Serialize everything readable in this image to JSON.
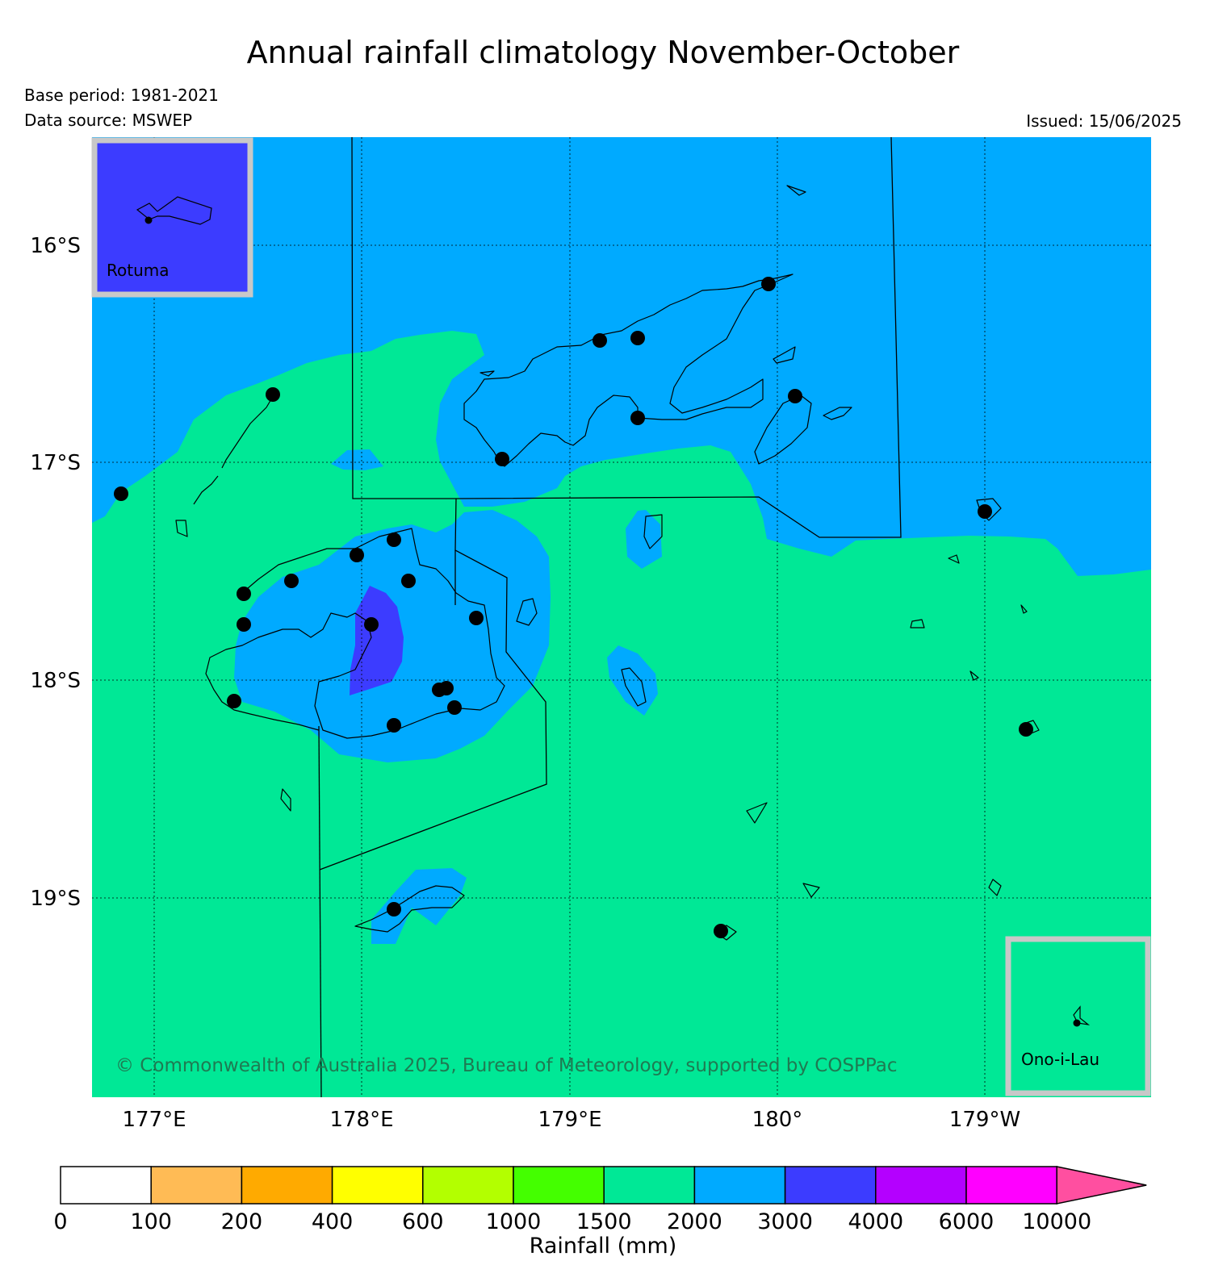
{
  "title": "Annual rainfall climatology November-October",
  "base_period": "Base period: 1981-2021",
  "data_source": "Data source: MSWEP",
  "issued": "Issued: 15/06/2025",
  "copyright": "© Commonwealth of Australia 2025, Bureau of Meteorology, supported by COSPPac",
  "insets": {
    "rotuma": "Rotuma",
    "ono_i_lau": "Ono-i-Lau"
  },
  "axes": {
    "lat_labels": [
      "16°S",
      "17°S",
      "18°S",
      "19°S"
    ],
    "lon_labels": [
      "177°E",
      "178°E",
      "179°E",
      "180°",
      "179°W"
    ]
  },
  "colorbar": {
    "title": "Rainfall (mm)",
    "ticks": [
      "0",
      "100",
      "200",
      "400",
      "600",
      "1000",
      "1500",
      "2000",
      "3000",
      "4000",
      "6000",
      "10000"
    ],
    "colors": [
      "#ffffff",
      "#ffbb55",
      "#ffaa00",
      "#ffff00",
      "#b3ff00",
      "#44ff00",
      "#00e896",
      "#00aaff",
      "#3c3cff",
      "#b400ff",
      "#ff00ff",
      "#ff4fa0"
    ]
  },
  "colors": {
    "band_1500_2000": "#00e896",
    "band_2000_3000": "#00aaff",
    "band_3000_4000": "#3c3cff",
    "inset_frame": "#c8c8c8"
  }
}
